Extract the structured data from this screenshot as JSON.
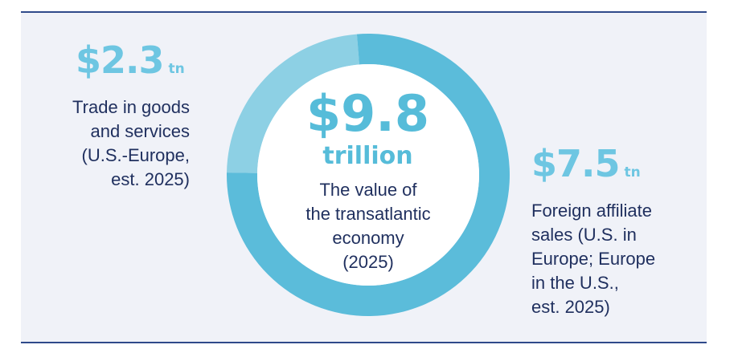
{
  "chart_data": {
    "type": "pie",
    "style": "donut",
    "total": {
      "value": "$9.8",
      "unit": "trillion",
      "label": "The value of the transatlantic economy (2025)"
    },
    "slices": [
      {
        "value": 2.3,
        "value_text": "$2.3",
        "unit": "tn",
        "label": "Trade in goods and services (U.S.-Europe, est. 2025)",
        "color": "#8dd0e4"
      },
      {
        "value": 7.5,
        "value_text": "$7.5",
        "unit": "tn",
        "label": "Foreign affiliate sales (U.S. in Europe; Europe in the U.S., est. 2025)",
        "color": "#5bbcda"
      }
    ]
  },
  "colors": {
    "accent_number": "#6ec6e2",
    "text": "#1f2f5e",
    "rule": "#2f4a8a",
    "background": "#f0f2f8"
  },
  "text": {
    "left": {
      "value": "$2.3",
      "unit": "tn",
      "lines": [
        "Trade in goods",
        "and services",
        "(U.S.-Europe,",
        "est. 2025)"
      ]
    },
    "center": {
      "value": "$9.8",
      "unit": "trillion",
      "lines": [
        "The value of",
        "the transatlantic",
        "economy",
        "(2025)"
      ]
    },
    "right": {
      "value": "$7.5",
      "unit": "tn",
      "lines": [
        "Foreign affiliate",
        "sales (U.S. in",
        "Europe; Europe",
        "in the U.S.,",
        "est. 2025)"
      ]
    }
  }
}
